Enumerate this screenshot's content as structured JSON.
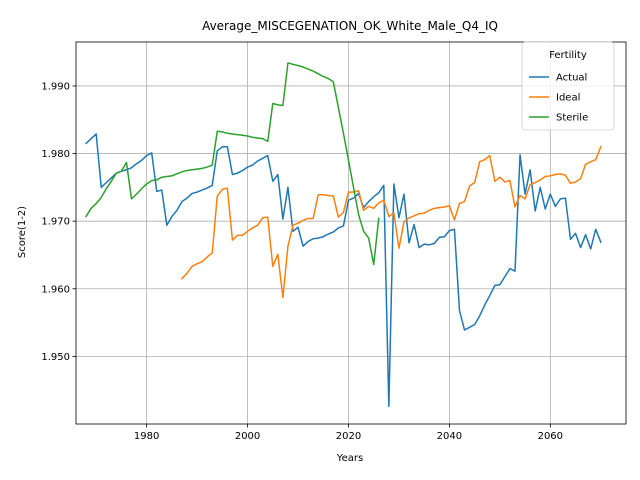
{
  "chart_data": {
    "type": "line",
    "title": "Average_MISCEGENATION_OK_White_Male_Q4_IQ",
    "xlabel": "Years",
    "ylabel": "Score(1-2)",
    "xlim": [
      1966,
      2075
    ],
    "ylim": [
      1.94,
      1.9965
    ],
    "xticks": [
      1980,
      2000,
      2020,
      2040,
      2060
    ],
    "yticks": [
      1.95,
      1.96,
      1.97,
      1.98,
      1.99
    ],
    "ytick_labels": [
      "1.950",
      "1.960",
      "1.970",
      "1.980",
      "1.990"
    ],
    "grid": true,
    "legend": {
      "title": "Fertility",
      "placement": "top-right"
    },
    "series": [
      {
        "name": "Actual",
        "color": "#1f77b4",
        "points": [
          [
            1968,
            1.9815
          ],
          [
            1970,
            1.9829
          ],
          [
            1971,
            1.975
          ],
          [
            1972,
            1.9757
          ],
          [
            1973,
            1.9764
          ],
          [
            1974,
            1.9771
          ],
          [
            1975,
            1.9774
          ],
          [
            1976,
            1.9776
          ],
          [
            1977,
            1.9779
          ],
          [
            1978,
            1.9785
          ],
          [
            1979,
            1.979
          ],
          [
            1980,
            1.9797
          ],
          [
            1981,
            1.9801
          ],
          [
            1982,
            1.9744
          ],
          [
            1983,
            1.9746
          ],
          [
            1984,
            1.9694
          ],
          [
            1985,
            1.9707
          ],
          [
            1986,
            1.9716
          ],
          [
            1987,
            1.9729
          ],
          [
            1988,
            1.9734
          ],
          [
            1989,
            1.9741
          ],
          [
            1990,
            1.9743
          ],
          [
            1991,
            1.9746
          ],
          [
            1992,
            1.9749
          ],
          [
            1993,
            1.9753
          ],
          [
            1994,
            1.9804
          ],
          [
            1995,
            1.981
          ],
          [
            1996,
            1.981
          ],
          [
            1997,
            1.9769
          ],
          [
            1998,
            1.9771
          ],
          [
            1999,
            1.9775
          ],
          [
            2000,
            1.978
          ],
          [
            2001,
            1.9783
          ],
          [
            2002,
            1.9789
          ],
          [
            2003,
            1.9793
          ],
          [
            2004,
            1.9797
          ],
          [
            2005,
            1.9759
          ],
          [
            2006,
            1.9769
          ],
          [
            2007,
            1.9703
          ],
          [
            2008,
            1.975
          ],
          [
            2009,
            1.9685
          ],
          [
            2010,
            1.9691
          ],
          [
            2011,
            1.9663
          ],
          [
            2012,
            1.967
          ],
          [
            2013,
            1.9674
          ],
          [
            2014,
            1.9675
          ],
          [
            2015,
            1.9677
          ],
          [
            2016,
            1.9681
          ],
          [
            2017,
            1.9684
          ],
          [
            2018,
            1.969
          ],
          [
            2019,
            1.9693
          ],
          [
            2020,
            1.9731
          ],
          [
            2021,
            1.9734
          ],
          [
            2022,
            1.9741
          ],
          [
            2023,
            1.972
          ],
          [
            2024,
            1.9729
          ],
          [
            2025,
            1.9736
          ],
          [
            2026,
            1.9742
          ],
          [
            2027,
            1.9753
          ],
          [
            2028,
            1.9426
          ],
          [
            2029,
            1.9755
          ],
          [
            2030,
            1.9705
          ],
          [
            2031,
            1.974
          ],
          [
            2032,
            1.9668
          ],
          [
            2033,
            1.9695
          ],
          [
            2034,
            1.9661
          ],
          [
            2035,
            1.9666
          ],
          [
            2036,
            1.9665
          ],
          [
            2037,
            1.9667
          ],
          [
            2038,
            1.9676
          ],
          [
            2039,
            1.9677
          ],
          [
            2040,
            1.9686
          ],
          [
            2041,
            1.9688
          ],
          [
            2042,
            1.9568
          ],
          [
            2043,
            1.9539
          ],
          [
            2044,
            1.9543
          ],
          [
            2045,
            1.9547
          ],
          [
            2046,
            1.956
          ],
          [
            2047,
            1.9576
          ],
          [
            2048,
            1.959
          ],
          [
            2049,
            1.9605
          ],
          [
            2050,
            1.9606
          ],
          [
            2051,
            1.9618
          ],
          [
            2052,
            1.963
          ],
          [
            2053,
            1.9626
          ],
          [
            2054,
            1.9798
          ],
          [
            2055,
            1.974
          ],
          [
            2056,
            1.9776
          ],
          [
            2057,
            1.9715
          ],
          [
            2058,
            1.975
          ],
          [
            2059,
            1.9718
          ],
          [
            2060,
            1.974
          ],
          [
            2061,
            1.9722
          ],
          [
            2062,
            1.9733
          ],
          [
            2063,
            1.9734
          ],
          [
            2064,
            1.9673
          ],
          [
            2065,
            1.9682
          ],
          [
            2066,
            1.9661
          ],
          [
            2067,
            1.968
          ],
          [
            2068,
            1.9659
          ],
          [
            2069,
            1.9688
          ],
          [
            2070,
            1.9669
          ]
        ]
      },
      {
        "name": "Ideal",
        "color": "#ff7f0e",
        "points": [
          [
            1987,
            1.9615
          ],
          [
            1988,
            1.9623
          ],
          [
            1989,
            1.9633
          ],
          [
            1990,
            1.9637
          ],
          [
            1991,
            1.964
          ],
          [
            1992,
            1.9647
          ],
          [
            1993,
            1.9653
          ],
          [
            1994,
            1.9737
          ],
          [
            1995,
            1.9747
          ],
          [
            1996,
            1.9749
          ],
          [
            1997,
            1.9672
          ],
          [
            1998,
            1.9679
          ],
          [
            1999,
            1.9679
          ],
          [
            2000,
            1.9685
          ],
          [
            2001,
            1.969
          ],
          [
            2002,
            1.9694
          ],
          [
            2003,
            1.9705
          ],
          [
            2004,
            1.9706
          ],
          [
            2005,
            1.9633
          ],
          [
            2006,
            1.9651
          ],
          [
            2007,
            1.9587
          ],
          [
            2008,
            1.9663
          ],
          [
            2009,
            1.9694
          ],
          [
            2010,
            1.9697
          ],
          [
            2011,
            1.9701
          ],
          [
            2012,
            1.9704
          ],
          [
            2013,
            1.9704
          ],
          [
            2014,
            1.9739
          ],
          [
            2015,
            1.9739
          ],
          [
            2016,
            1.9738
          ],
          [
            2017,
            1.9737
          ],
          [
            2018,
            1.9706
          ],
          [
            2019,
            1.9713
          ],
          [
            2020,
            1.9743
          ],
          [
            2021,
            1.9743
          ],
          [
            2022,
            1.9745
          ],
          [
            2023,
            1.9716
          ],
          [
            2024,
            1.9722
          ],
          [
            2025,
            1.9719
          ],
          [
            2026,
            1.9727
          ],
          [
            2027,
            1.9731
          ],
          [
            2028,
            1.9707
          ],
          [
            2029,
            1.9712
          ],
          [
            2030,
            1.966
          ],
          [
            2031,
            1.9699
          ],
          [
            2032,
            1.9705
          ],
          [
            2033,
            1.9708
          ],
          [
            2034,
            1.9711
          ],
          [
            2035,
            1.9712
          ],
          [
            2036,
            1.9716
          ],
          [
            2037,
            1.9719
          ],
          [
            2038,
            1.972
          ],
          [
            2039,
            1.9721
          ],
          [
            2040,
            1.9723
          ],
          [
            2041,
            1.9702
          ],
          [
            2042,
            1.9726
          ],
          [
            2043,
            1.9729
          ],
          [
            2044,
            1.9752
          ],
          [
            2045,
            1.9757
          ],
          [
            2046,
            1.9788
          ],
          [
            2047,
            1.9791
          ],
          [
            2048,
            1.9797
          ],
          [
            2049,
            1.9759
          ],
          [
            2050,
            1.9765
          ],
          [
            2051,
            1.9758
          ],
          [
            2052,
            1.976
          ],
          [
            2053,
            1.9721
          ],
          [
            2054,
            1.9738
          ],
          [
            2055,
            1.9733
          ],
          [
            2056,
            1.9754
          ],
          [
            2057,
            1.9757
          ],
          [
            2058,
            1.9761
          ],
          [
            2059,
            1.9766
          ],
          [
            2060,
            1.9767
          ],
          [
            2061,
            1.9769
          ],
          [
            2062,
            1.977
          ],
          [
            2063,
            1.9768
          ],
          [
            2064,
            1.9756
          ],
          [
            2065,
            1.9758
          ],
          [
            2066,
            1.9763
          ],
          [
            2067,
            1.9784
          ],
          [
            2068,
            1.9788
          ],
          [
            2069,
            1.9791
          ],
          [
            2070,
            1.981
          ]
        ]
      },
      {
        "name": "Sterile",
        "color": "#2ca02c",
        "points": [
          [
            1968,
            1.9707
          ],
          [
            1969,
            1.9719
          ],
          [
            1970,
            1.9726
          ],
          [
            1971,
            1.9735
          ],
          [
            1972,
            1.9748
          ],
          [
            1973,
            1.9759
          ],
          [
            1974,
            1.9771
          ],
          [
            1975,
            1.9774
          ],
          [
            1976,
            1.9787
          ],
          [
            1977,
            1.9733
          ],
          [
            1978,
            1.974
          ],
          [
            1979,
            1.9748
          ],
          [
            1980,
            1.9755
          ],
          [
            1981,
            1.976
          ],
          [
            1982,
            1.9761
          ],
          [
            1983,
            1.9765
          ],
          [
            1984,
            1.9766
          ],
          [
            1985,
            1.9767
          ],
          [
            1986,
            1.977
          ],
          [
            1987,
            1.9773
          ],
          [
            1988,
            1.9775
          ],
          [
            1989,
            1.9776
          ],
          [
            1990,
            1.9777
          ],
          [
            1991,
            1.9778
          ],
          [
            1992,
            1.978
          ],
          [
            1993,
            1.9783
          ],
          [
            1994,
            1.9833
          ],
          [
            1995,
            1.9832
          ],
          [
            1996,
            1.983
          ],
          [
            1997,
            1.9829
          ],
          [
            1998,
            1.9828
          ],
          [
            1999,
            1.9827
          ],
          [
            2000,
            1.9826
          ],
          [
            2001,
            1.9824
          ],
          [
            2002,
            1.9823
          ],
          [
            2003,
            1.9822
          ],
          [
            2004,
            1.9818
          ],
          [
            2005,
            1.9874
          ],
          [
            2006,
            1.9872
          ],
          [
            2007,
            1.9871
          ],
          [
            2008,
            1.9934
          ],
          [
            2009,
            1.9932
          ],
          [
            2010,
            1.993
          ],
          [
            2011,
            1.9928
          ],
          [
            2012,
            1.9925
          ],
          [
            2013,
            1.9922
          ],
          [
            2014,
            1.9918
          ],
          [
            2015,
            1.9914
          ],
          [
            2016,
            1.9911
          ],
          [
            2017,
            1.9906
          ],
          [
            2018,
            1.9868
          ],
          [
            2019,
            1.983
          ],
          [
            2020,
            1.979
          ],
          [
            2021,
            1.975
          ],
          [
            2022,
            1.971
          ],
          [
            2023,
            1.9685
          ],
          [
            2024,
            1.9675
          ],
          [
            2025,
            1.9636
          ],
          [
            2026,
            1.9704
          ]
        ]
      }
    ]
  }
}
